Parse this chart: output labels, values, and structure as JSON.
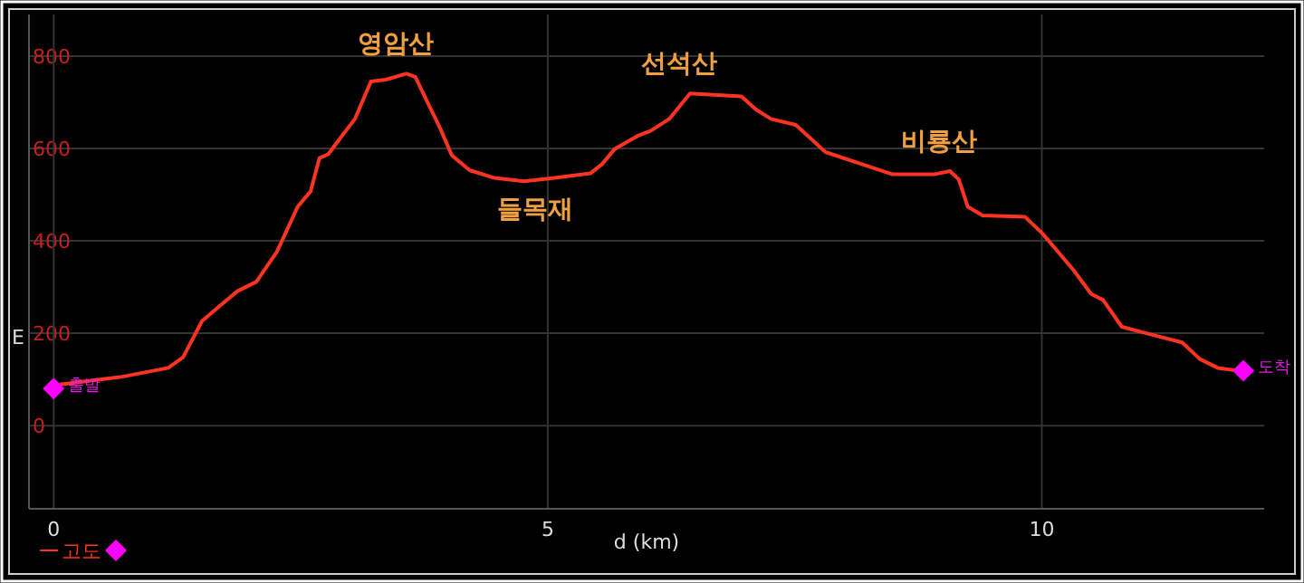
{
  "chart_data": {
    "type": "line",
    "xlabel": "d (km)",
    "ylabel": "E",
    "xlim": [
      -0.25,
      12.25
    ],
    "ylim": [
      -180,
      890
    ],
    "xticks": [
      0,
      5,
      10
    ],
    "yticks": [
      0,
      200,
      400,
      600,
      800
    ],
    "grid": true,
    "legend": "bottom left",
    "series": [
      {
        "name": "고도",
        "color": "#ff3322",
        "x": [
          0.06,
          0.67,
          1.16,
          1.31,
          1.5,
          1.68,
          1.86,
          2.05,
          2.26,
          2.47,
          2.6,
          2.69,
          2.78,
          2.93,
          3.05,
          3.21,
          3.36,
          3.57,
          3.66,
          3.79,
          3.91,
          4.03,
          4.21,
          4.46,
          4.76,
          5.07,
          5.43,
          5.55,
          5.68,
          5.92,
          6.04,
          6.23,
          6.44,
          6.96,
          7.11,
          7.26,
          7.51,
          7.81,
          8.18,
          8.49,
          8.91,
          9.07,
          9.16,
          9.25,
          9.4,
          9.83,
          10.01,
          10.32,
          10.5,
          10.62,
          10.81,
          11.11,
          11.42,
          11.6,
          11.78,
          12.02
        ],
        "values": [
          89,
          105,
          125,
          148,
          226,
          259,
          291,
          311,
          376,
          474,
          507,
          579,
          588,
          631,
          664,
          745,
          749,
          762,
          755,
          697,
          644,
          585,
          553,
          536,
          529,
          536,
          546,
          566,
          599,
          628,
          638,
          664,
          719,
          713,
          684,
          664,
          651,
          592,
          566,
          544,
          544,
          551,
          533,
          474,
          455,
          452,
          415,
          337,
          285,
          272,
          214,
          197,
          180,
          144,
          125,
          118
        ]
      },
      {
        "type": "scatter",
        "color": "#ff00ff",
        "marker": "diamond",
        "x": [
          0,
          12.04
        ],
        "values": [
          80,
          119
        ]
      }
    ],
    "annotations": [
      {
        "text": "출발",
        "x": 0,
        "y": 80
      },
      {
        "text": "영암산",
        "x": 3.57,
        "y": 762
      },
      {
        "text": "들목재",
        "x": 4.76,
        "y": 529
      },
      {
        "text": "선석산",
        "x": 6.44,
        "y": 719
      },
      {
        "text": "비룡산",
        "x": 9.07,
        "y": 551
      },
      {
        "text": "도착",
        "x": 12.04,
        "y": 119
      }
    ]
  }
}
